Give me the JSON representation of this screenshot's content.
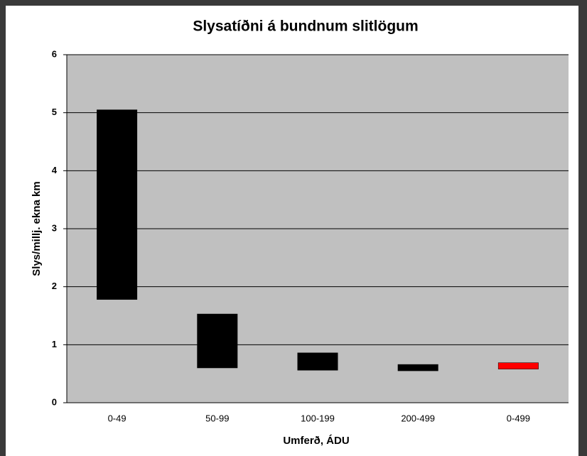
{
  "chart_data": {
    "type": "floating-bar",
    "title": "Slysatíðni á bundnum slitlögum",
    "x_label": "Umferð, ÁDU",
    "y_label": "Slys/millj. ekna km",
    "categories": [
      "0-49",
      "50-99",
      "100-199",
      "200-499",
      "0-499"
    ],
    "low": [
      1.78,
      0.6,
      0.56,
      0.55,
      0.58
    ],
    "high": [
      5.05,
      1.53,
      0.86,
      0.66,
      0.69
    ],
    "colors": [
      "#000000",
      "#000000",
      "#000000",
      "#000000",
      "#ff0000"
    ],
    "ylim": [
      0,
      6
    ],
    "yticks": [
      0,
      1,
      2,
      3,
      4,
      5,
      6
    ],
    "grid": true
  }
}
